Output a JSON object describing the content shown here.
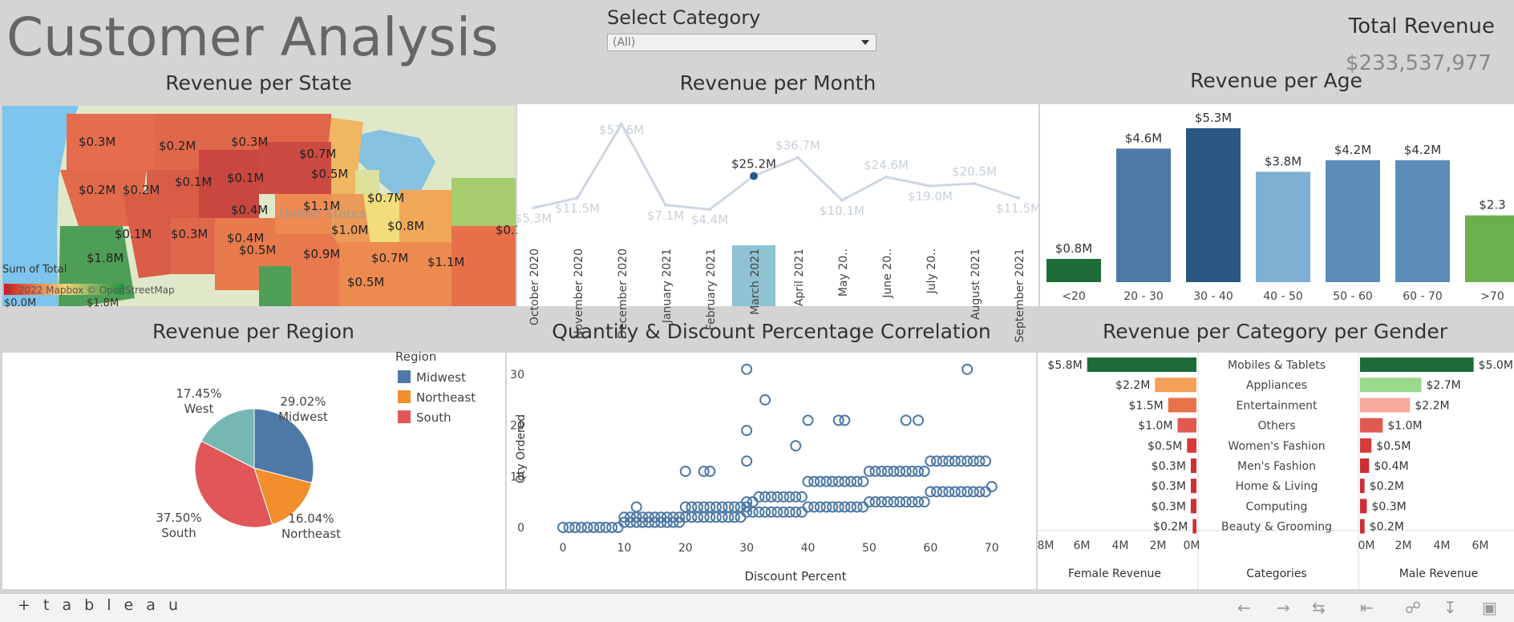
{
  "header": {
    "title": "Customer Analysis",
    "select_label": "Select Category",
    "select_value": "(All)",
    "total_label": "Total Revenue",
    "total_value": "$233,537,977"
  },
  "footer": {
    "logo": "+ t a b l e a u"
  },
  "titles": {
    "state": "Revenue per State",
    "month": "Revenue per Month",
    "age": "Revenue per Age",
    "region": "Revenue per Region",
    "corr": "Quantity &  Discount Percentage Correlation",
    "gender": "Revenue per Category per Gender"
  },
  "colors": {
    "blue": "#4e79a7",
    "orange": "#f28e2b",
    "red": "#e15759",
    "teal": "#76b7b2",
    "dark_green": "#1e6b3a",
    "light_green": "#6ab04c"
  },
  "chart_data": [
    {
      "type": "map",
      "id": "state",
      "title": "Revenue per State",
      "legend_title": "Sum of Total",
      "legend_min": "$0.0M",
      "legend_max": "$1.8M",
      "attribution": "© 2022 Mapbox  © OpenStreetMap",
      "map_label": "United States",
      "labels": [
        "$0.3M",
        "$0.2M",
        "$0.3M",
        "$0.7M",
        "$0.2M",
        "$0.2M",
        "$0.1M",
        "$0.5M",
        "$0.1M",
        "$0.4M",
        "$1.1M",
        "$0.7M",
        "$0.1M",
        "$0.3M",
        "$0.4M",
        "$0.5M",
        "$1.0M",
        "$0.8M",
        "$1.8M",
        "$0.9M",
        "$0.7M",
        "$1.1M",
        "$0.5M",
        "$0.1"
      ]
    },
    {
      "type": "line",
      "id": "month",
      "title": "Revenue per Month",
      "categories": [
        "October 2020",
        "November 2020",
        "December 2020",
        "January 2021",
        "February 2021",
        "March 2021",
        "April 2021",
        "May 20..",
        "June 20..",
        "July 20..",
        "August 2021",
        "September 2021"
      ],
      "values": [
        5.3,
        11.5,
        57.6,
        7.1,
        4.4,
        25.2,
        36.7,
        10.1,
        24.6,
        19.0,
        20.5,
        11.5
      ],
      "labels": [
        "$5.3M",
        "$11.5M",
        "$57.6M",
        "$7.1M",
        "$4.4M",
        "$25.2M",
        "$36.7M",
        "$10.1M",
        "$24.6M",
        "$19.0M",
        "$20.5M",
        "$11.5M"
      ],
      "highlight_index": 5
    },
    {
      "type": "bar",
      "id": "age",
      "title": "Revenue per Age",
      "categories": [
        "<20",
        "20 - 30",
        "30 - 40",
        "40 - 50",
        "50 - 60",
        "60 - 70",
        ">70"
      ],
      "values": [
        0.8,
        4.6,
        5.3,
        3.8,
        4.2,
        4.2,
        2.3
      ],
      "labels": [
        "$0.8M",
        "$4.6M",
        "$5.3M",
        "$3.8M",
        "$4.2M",
        "$4.2M",
        "$2.3"
      ],
      "colors": [
        "#1e6b3a",
        "#4e79a7",
        "#2a5783",
        "#7fb0d4",
        "#5b8db8",
        "#5b8db8",
        "#6ab04c"
      ]
    },
    {
      "type": "pie",
      "id": "region",
      "title": "Revenue per Region",
      "legend_title": "Region",
      "legend": [
        "Midwest",
        "Northeast",
        "South"
      ],
      "slices": [
        {
          "name": "Midwest",
          "value": 29.02,
          "label": "29.02%",
          "color": "#4e79a7"
        },
        {
          "name": "Northeast",
          "value": 16.04,
          "label": "16.04%",
          "color": "#f28e2b"
        },
        {
          "name": "South",
          "value": 37.5,
          "label": "37.50%",
          "color": "#e15759"
        },
        {
          "name": "West",
          "value": 17.45,
          "label": "17.45%",
          "color": "#76b7b2"
        }
      ]
    },
    {
      "type": "scatter",
      "id": "corr",
      "title": "Quantity &  Discount Percentage Correlation",
      "xlabel": "Discount Percent",
      "ylabel": "Qty Ordered",
      "xlim": [
        0,
        72
      ],
      "ylim": [
        0,
        33
      ],
      "xticks": [
        0,
        10,
        20,
        30,
        40,
        50,
        60,
        70
      ],
      "yticks": [
        0,
        10,
        20,
        30
      ],
      "points": [
        [
          0,
          0
        ],
        [
          1,
          0
        ],
        [
          2,
          0
        ],
        [
          3,
          0
        ],
        [
          4,
          0
        ],
        [
          5,
          0
        ],
        [
          6,
          0
        ],
        [
          7,
          0
        ],
        [
          8,
          0
        ],
        [
          9,
          0
        ],
        [
          10,
          1
        ],
        [
          11,
          1
        ],
        [
          12,
          1
        ],
        [
          13,
          1
        ],
        [
          14,
          1
        ],
        [
          15,
          1
        ],
        [
          16,
          1
        ],
        [
          17,
          1
        ],
        [
          18,
          1
        ],
        [
          19,
          1
        ],
        [
          10,
          2
        ],
        [
          11,
          2
        ],
        [
          12,
          2
        ],
        [
          13,
          2
        ],
        [
          14,
          2
        ],
        [
          15,
          2
        ],
        [
          16,
          2
        ],
        [
          17,
          2
        ],
        [
          18,
          2
        ],
        [
          19,
          2
        ],
        [
          12,
          4
        ],
        [
          20,
          4
        ],
        [
          21,
          4
        ],
        [
          22,
          4
        ],
        [
          23,
          4
        ],
        [
          24,
          4
        ],
        [
          25,
          4
        ],
        [
          26,
          4
        ],
        [
          27,
          4
        ],
        [
          28,
          4
        ],
        [
          29,
          4
        ],
        [
          30,
          4
        ],
        [
          20,
          2
        ],
        [
          21,
          2
        ],
        [
          22,
          2
        ],
        [
          23,
          2
        ],
        [
          24,
          2
        ],
        [
          25,
          2
        ],
        [
          26,
          2
        ],
        [
          27,
          2
        ],
        [
          28,
          2
        ],
        [
          29,
          2
        ],
        [
          20,
          11
        ],
        [
          23,
          11
        ],
        [
          24,
          11
        ],
        [
          30,
          3
        ],
        [
          31,
          3
        ],
        [
          32,
          3
        ],
        [
          33,
          3
        ],
        [
          34,
          3
        ],
        [
          35,
          3
        ],
        [
          36,
          3
        ],
        [
          37,
          3
        ],
        [
          38,
          3
        ],
        [
          39,
          3
        ],
        [
          30,
          5
        ],
        [
          31,
          5
        ],
        [
          32,
          6
        ],
        [
          33,
          6
        ],
        [
          34,
          6
        ],
        [
          35,
          6
        ],
        [
          36,
          6
        ],
        [
          37,
          6
        ],
        [
          38,
          6
        ],
        [
          39,
          6
        ],
        [
          30,
          13
        ],
        [
          30,
          19
        ],
        [
          30,
          31
        ],
        [
          33,
          25
        ],
        [
          38,
          16
        ],
        [
          40,
          21
        ],
        [
          45,
          21
        ],
        [
          46,
          21
        ],
        [
          56,
          21
        ],
        [
          58,
          21
        ],
        [
          66,
          31
        ],
        [
          40,
          4
        ],
        [
          41,
          4
        ],
        [
          42,
          4
        ],
        [
          43,
          4
        ],
        [
          44,
          4
        ],
        [
          45,
          4
        ],
        [
          46,
          4
        ],
        [
          47,
          4
        ],
        [
          48,
          4
        ],
        [
          49,
          4
        ],
        [
          40,
          9
        ],
        [
          41,
          9
        ],
        [
          42,
          9
        ],
        [
          43,
          9
        ],
        [
          44,
          9
        ],
        [
          45,
          9
        ],
        [
          46,
          9
        ],
        [
          47,
          9
        ],
        [
          48,
          9
        ],
        [
          49,
          9
        ],
        [
          50,
          5
        ],
        [
          51,
          5
        ],
        [
          52,
          5
        ],
        [
          53,
          5
        ],
        [
          54,
          5
        ],
        [
          55,
          5
        ],
        [
          56,
          5
        ],
        [
          57,
          5
        ],
        [
          58,
          5
        ],
        [
          59,
          5
        ],
        [
          50,
          11
        ],
        [
          51,
          11
        ],
        [
          52,
          11
        ],
        [
          53,
          11
        ],
        [
          54,
          11
        ],
        [
          55,
          11
        ],
        [
          56,
          11
        ],
        [
          57,
          11
        ],
        [
          58,
          11
        ],
        [
          59,
          11
        ],
        [
          60,
          7
        ],
        [
          61,
          7
        ],
        [
          62,
          7
        ],
        [
          63,
          7
        ],
        [
          64,
          7
        ],
        [
          65,
          7
        ],
        [
          66,
          7
        ],
        [
          67,
          7
        ],
        [
          68,
          7
        ],
        [
          69,
          7
        ],
        [
          70,
          8
        ],
        [
          60,
          13
        ],
        [
          61,
          13
        ],
        [
          62,
          13
        ],
        [
          63,
          13
        ],
        [
          64,
          13
        ],
        [
          65,
          13
        ],
        [
          66,
          13
        ],
        [
          67,
          13
        ],
        [
          68,
          13
        ],
        [
          69,
          13
        ]
      ]
    },
    {
      "type": "bar",
      "id": "gender",
      "orientation": "horizontal-butterfly",
      "title": "Revenue per Category per Gender",
      "categories": [
        "Mobiles & Tablets",
        "Appliances",
        "Entertainment",
        "Others",
        "Women's Fashion",
        "Men's Fashion",
        "Home & Living",
        "Computing",
        "Beauty & Grooming"
      ],
      "series": [
        {
          "name": "Female Revenue",
          "values": [
            5.8,
            2.2,
            1.5,
            1.0,
            0.5,
            0.3,
            0.3,
            0.3,
            0.2
          ],
          "labels": [
            "$5.8M",
            "$2.2M",
            "$1.5M",
            "$1.0M",
            "$0.5M",
            "$0.3M",
            "$0.3M",
            "$0.3M",
            "$0.2M"
          ],
          "colors": [
            "#1e6b3a",
            "#f4a05a",
            "#e8734a",
            "#e05a4f",
            "#d63a3a",
            "#cc2f35",
            "#cc2f35",
            "#cc2f35",
            "#cc2f35"
          ]
        },
        {
          "name": "Male Revenue",
          "values": [
            5.0,
            2.7,
            2.2,
            1.0,
            0.5,
            0.4,
            0.2,
            0.3,
            0.2
          ],
          "labels": [
            "$5.0M",
            "$2.7M",
            "$2.2M",
            "$1.0M",
            "$0.5M",
            "$0.4M",
            "$0.2M",
            "$0.3M",
            "$0.2M"
          ],
          "colors": [
            "#1e6b3a",
            "#9ad88a",
            "#f7a99a",
            "#e05a4f",
            "#d63a3a",
            "#cc2f35",
            "#cc2f35",
            "#cc2f35",
            "#cc2f35"
          ]
        }
      ],
      "middle_header": "Categories",
      "female_ticks": [
        "8M",
        "6M",
        "4M",
        "2M",
        "0M"
      ],
      "male_ticks": [
        "0M",
        "2M",
        "4M",
        "6M"
      ],
      "xlim": [
        0,
        8
      ]
    }
  ]
}
